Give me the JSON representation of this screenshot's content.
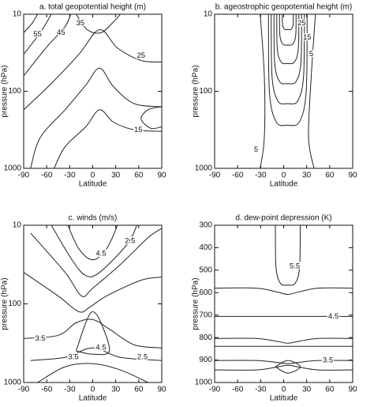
{
  "chart_data": [
    {
      "type": "contour",
      "title": "a. total geopotential height (m)",
      "xlabel": "Latitude",
      "ylabel": "pressure (hPa)",
      "xlim": [
        -90,
        90
      ],
      "xticks": [
        -90,
        -60,
        -30,
        0,
        30,
        60,
        90
      ],
      "ylim": [
        1000,
        10
      ],
      "yticks": [
        10,
        100,
        1000
      ],
      "log_y": true,
      "contour_labels": [
        55,
        45,
        35,
        25,
        15
      ]
    },
    {
      "type": "contour",
      "title": "b. ageostrophic geopotential height (m)",
      "xlabel": "Latitude",
      "ylabel": "pressure (hPa)",
      "xlim": [
        -90,
        90
      ],
      "xticks": [
        -90,
        -60,
        -30,
        0,
        30,
        60,
        90
      ],
      "ylim": [
        1000,
        10
      ],
      "yticks": [
        10,
        100,
        1000
      ],
      "log_y": true,
      "contour_labels": [
        25,
        15,
        5,
        5
      ]
    },
    {
      "type": "contour",
      "title": "c. winds (m/s)",
      "xlabel": "Latitude",
      "ylabel": "pressure (hPa)",
      "xlim": [
        -90,
        90
      ],
      "xticks": [
        -90,
        -60,
        -30,
        0,
        30,
        60,
        90
      ],
      "ylim": [
        1000,
        10
      ],
      "yticks": [
        10,
        100,
        1000
      ],
      "log_y": true,
      "contour_labels": [
        4.5,
        2.5,
        3.5,
        4.5,
        3.5,
        2.5
      ]
    },
    {
      "type": "contour",
      "title": "d. dew-point depression (K)",
      "xlabel": "Latitude",
      "ylabel": "pressure (hPa)",
      "xlim": [
        -90,
        90
      ],
      "xticks": [
        -90,
        -60,
        -30,
        0,
        30,
        60,
        90
      ],
      "ylim": [
        1000,
        300
      ],
      "yticks": [
        300,
        400,
        500,
        600,
        700,
        800,
        900,
        1000
      ],
      "log_y": false,
      "contour_labels": [
        5.5,
        4.5,
        3.5
      ]
    }
  ]
}
